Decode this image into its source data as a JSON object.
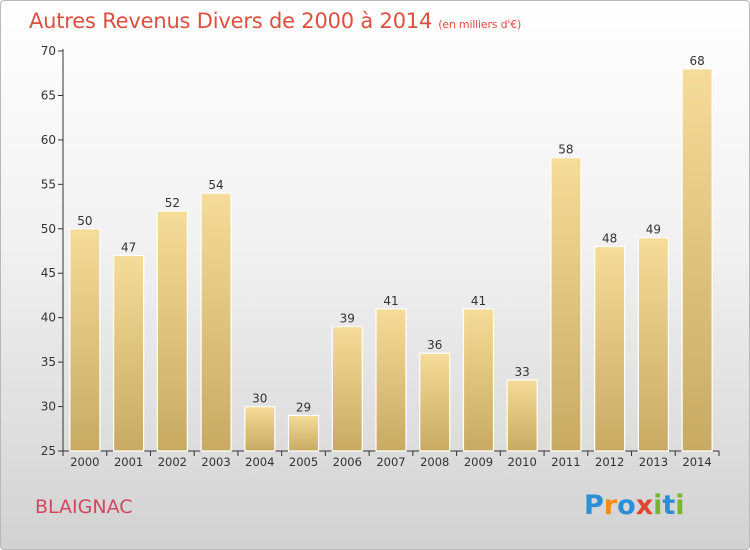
{
  "header": {
    "title": "Autres Revenus Divers de 2000 à 2014",
    "unit": "(en milliers d'€)"
  },
  "footer": {
    "commune": "BLAIGNAC",
    "brand": "Proxiti",
    "brand_colors": [
      "#2a8fd4",
      "#f08c1e",
      "#2a8fd4",
      "#e0452f",
      "#7ab62c",
      "#2a8fd4",
      "#7ab62c"
    ]
  },
  "colors": {
    "title": "#dd4f3f",
    "bar_top": "#f5dc98",
    "bar_bottom": "#c8aa62",
    "axis": "#333333",
    "grid": "#cccccc"
  },
  "chart_data": {
    "type": "bar",
    "categories": [
      "2000",
      "2001",
      "2002",
      "2003",
      "2004",
      "2005",
      "2006",
      "2007",
      "2008",
      "2009",
      "2010",
      "2011",
      "2012",
      "2013",
      "2014"
    ],
    "values": [
      50,
      47,
      52,
      54,
      30,
      29,
      39,
      41,
      36,
      41,
      33,
      58,
      48,
      49,
      68
    ],
    "data_labels": [
      "50",
      "47",
      "52",
      "54",
      "30",
      "29",
      "39",
      "41",
      "36",
      "41",
      "33",
      "58",
      "48",
      "49",
      "68"
    ],
    "ylim": [
      25,
      70
    ],
    "yticks": [
      25,
      30,
      35,
      40,
      45,
      50,
      55,
      60,
      65,
      70
    ],
    "title": "Autres Revenus Divers de 2000 à 2014",
    "xlabel": "",
    "ylabel": "",
    "grid": false,
    "legend": "none"
  }
}
